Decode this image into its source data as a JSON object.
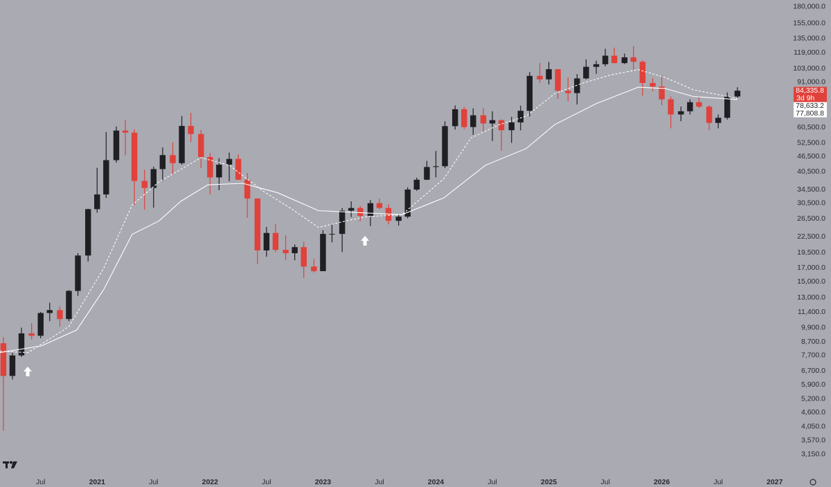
{
  "chart_data": {
    "type": "candlestick",
    "yscale": "log",
    "grid": false,
    "up_color": "#1f1f24",
    "down_color": "#e0413a",
    "xlim": [
      2020.14,
      2027.1
    ],
    "ylim": [
      2640,
      191400
    ],
    "xticks": [
      {
        "value": 2020.5,
        "label": "Jul"
      },
      2021,
      {
        "value": 2021.5,
        "label": "Jul"
      },
      2022,
      {
        "value": 2022.5,
        "label": "Jul"
      },
      2023,
      {
        "value": 2023.5,
        "label": "Jul"
      },
      2024,
      {
        "value": 2024.5,
        "label": "Jul"
      },
      2025,
      {
        "value": 2025.5,
        "label": "Jul"
      },
      2026,
      {
        "value": 2026.5,
        "label": "Jul"
      },
      2027
    ],
    "yticks": [
      {
        "value": 180000,
        "label": "180,000.0"
      },
      {
        "value": 155000,
        "label": "155,000.0"
      },
      {
        "value": 135000,
        "label": "135,000.0"
      },
      {
        "value": 119000,
        "label": "119,000.0"
      },
      {
        "value": 103000,
        "label": "103,000.0"
      },
      {
        "value": 91000,
        "label": "91,000.0"
      },
      {
        "value": 60500,
        "label": "60,500.0"
      },
      {
        "value": 52500,
        "label": "52,500.0"
      },
      {
        "value": 46500,
        "label": "46,500.0"
      },
      {
        "value": 40500,
        "label": "40,500.0"
      },
      {
        "value": 34500,
        "label": "34,500.0"
      },
      {
        "value": 30500,
        "label": "30,500.0"
      },
      {
        "value": 26500,
        "label": "26,500.0"
      },
      {
        "value": 22500,
        "label": "22,500.0"
      },
      {
        "value": 19500,
        "label": "19,500.0"
      },
      {
        "value": 17000,
        "label": "17,000.0"
      },
      {
        "value": 15000,
        "label": "15,000.0"
      },
      {
        "value": 13000,
        "label": "13,000.0"
      },
      {
        "value": 11400,
        "label": "11,400.0"
      },
      {
        "value": 9900,
        "label": "9,900.0"
      },
      {
        "value": 8700,
        "label": "8,700.0"
      },
      {
        "value": 7700,
        "label": "7,700.0"
      },
      {
        "value": 6700,
        "label": "6,700.0"
      },
      {
        "value": 5900,
        "label": "5,900.0"
      },
      {
        "value": 5200,
        "label": "5,200.0"
      },
      {
        "value": 4600,
        "label": "4,600.0"
      },
      {
        "value": 4050,
        "label": "4,050.0"
      },
      {
        "value": 3570,
        "label": "3,570.0"
      },
      {
        "value": 3150,
        "label": "3,150.0"
      }
    ],
    "x": [
      2020.17,
      2020.25,
      2020.33,
      2020.42,
      2020.5,
      2020.58,
      2020.67,
      2020.75,
      2020.83,
      2020.92,
      2021.0,
      2021.08,
      2021.17,
      2021.25,
      2021.33,
      2021.42,
      2021.5,
      2021.58,
      2021.67,
      2021.75,
      2021.83,
      2021.92,
      2022.0,
      2022.08,
      2022.17,
      2022.25,
      2022.33,
      2022.42,
      2022.5,
      2022.58,
      2022.67,
      2022.75,
      2022.83,
      2022.92,
      2023.0,
      2023.08,
      2023.17,
      2023.25,
      2023.33,
      2023.42,
      2023.5,
      2023.58,
      2023.67,
      2023.75,
      2023.83,
      2023.92,
      2024.0,
      2024.08,
      2024.17,
      2024.25,
      2024.33,
      2024.42,
      2024.5,
      2024.58,
      2024.67,
      2024.75,
      2024.83,
      2024.92,
      2025.0,
      2025.08,
      2025.17,
      2025.25,
      2025.33,
      2025.42,
      2025.5,
      2025.58,
      2025.67,
      2025.75,
      2025.83,
      2025.92,
      2026.0,
      2026.08,
      2026.17,
      2026.25,
      2026.33,
      2026.42,
      2026.5,
      2026.58,
      2026.67
    ],
    "open": [
      8600,
      6400,
      7700,
      9400,
      9200,
      11300,
      11600,
      10700,
      13800,
      19000,
      28900,
      33000,
      45000,
      58800,
      57700,
      37300,
      35000,
      41500,
      47100,
      43800,
      61300,
      57000,
      46300,
      38500,
      43200,
      45500,
      37700,
      31800,
      19900,
      23300,
      20000,
      19400,
      20500,
      17200,
      16500,
      23100,
      23100,
      28500,
      29200,
      27200,
      30500,
      29200,
      26000,
      27000,
      34500,
      37700,
      42300,
      42600,
      61200,
      71300,
      60700,
      67500,
      62700,
      64600,
      59000,
      63300,
      70300,
      96400,
      93400,
      102400,
      84300,
      82500,
      94200,
      104600,
      107100,
      115700,
      108200,
      114000,
      109500,
      90400,
      87500,
      78000,
      68000,
      70000,
      76000,
      73000,
      63000,
      66000,
      80000
    ],
    "high": [
      9100,
      7900,
      9900,
      10300,
      11400,
      12400,
      12000,
      13900,
      19400,
      29000,
      42000,
      58000,
      61000,
      64800,
      59500,
      41300,
      42400,
      50500,
      52900,
      67000,
      69000,
      59100,
      48000,
      45800,
      48200,
      47400,
      40000,
      31900,
      24600,
      25200,
      22800,
      21000,
      21500,
      18400,
      23900,
      25200,
      29200,
      31000,
      29800,
      31400,
      31800,
      30200,
      27500,
      35200,
      38400,
      44700,
      48900,
      63900,
      73800,
      72800,
      71900,
      71900,
      70000,
      65000,
      66500,
      73600,
      99800,
      108300,
      109300,
      102500,
      95000,
      97900,
      111900,
      110600,
      123200,
      124400,
      117900,
      126200,
      111000,
      94600,
      97000,
      80000,
      73000,
      78000,
      80000,
      74000,
      68000,
      83000,
      87000
    ],
    "low": [
      3900,
      6200,
      7600,
      8900,
      9000,
      10500,
      10000,
      10500,
      13200,
      18000,
      28000,
      32000,
      44000,
      47000,
      30000,
      28800,
      29300,
      37300,
      39600,
      43200,
      53000,
      42000,
      33000,
      34300,
      37200,
      37600,
      26700,
      17600,
      18800,
      19600,
      18200,
      18200,
      15500,
      16300,
      16500,
      21400,
      19600,
      26900,
      25900,
      24800,
      28900,
      25200,
      24900,
      26600,
      34100,
      37600,
      38500,
      41900,
      59300,
      59600,
      56600,
      58400,
      53500,
      49000,
      52600,
      58900,
      66800,
      90500,
      89200,
      78200,
      76600,
      74400,
      93400,
      98200,
      105100,
      108000,
      107300,
      102000,
      80600,
      84000,
      74000,
      60000,
      64000,
      68000,
      72000,
      59000,
      60000,
      65000,
      79000
    ],
    "close": [
      6400,
      7700,
      9400,
      9200,
      11300,
      11600,
      10700,
      13800,
      19000,
      28900,
      33000,
      45000,
      58800,
      57700,
      37300,
      35000,
      41500,
      47100,
      43800,
      61300,
      57000,
      46300,
      38500,
      43200,
      45500,
      37700,
      31800,
      19900,
      23300,
      20000,
      19400,
      20500,
      17200,
      16500,
      23100,
      23100,
      28500,
      29200,
      27200,
      30500,
      29200,
      26000,
      27000,
      34500,
      37700,
      42300,
      42600,
      61200,
      71300,
      60700,
      67500,
      62700,
      64600,
      59000,
      63300,
      70300,
      96400,
      93400,
      102400,
      84300,
      82500,
      94200,
      104600,
      107100,
      115700,
      108200,
      114000,
      109500,
      90400,
      87500,
      78000,
      68000,
      70000,
      76000,
      73000,
      63000,
      66000,
      80000,
      84335.8
    ],
    "lines": [
      {
        "style": "dashed",
        "color": "#ffffff",
        "x": [
          2020.14,
          2020.39,
          2020.75,
          2021.06,
          2021.31,
          2021.55,
          2021.92,
          2022.17,
          2022.47,
          2022.72,
          2022.96,
          2023.21,
          2023.39,
          2023.7,
          2024.07,
          2024.31,
          2024.56,
          2024.8,
          2025.05,
          2025.29,
          2025.54,
          2025.79,
          2026.03,
          2026.28,
          2026.67
        ],
        "values": [
          8000,
          7900,
          10000,
          17000,
          30000,
          37000,
          46000,
          43000,
          34000,
          29000,
          24500,
          26000,
          27000,
          27500,
          38000,
          55000,
          62000,
          67000,
          82000,
          90000,
          97000,
          102000,
          95000,
          85000,
          78633.2
        ]
      },
      {
        "style": "solid",
        "color": "#ffffff",
        "x": [
          2020.14,
          2020.51,
          2020.82,
          2021.06,
          2021.31,
          2021.55,
          2021.74,
          2021.98,
          2022.29,
          2022.6,
          2022.96,
          2023.33,
          2023.7,
          2024.07,
          2024.44,
          2024.8,
          2025.05,
          2025.42,
          2025.79,
          2026.03,
          2026.28,
          2026.67
        ],
        "values": [
          7900,
          8400,
          9700,
          14000,
          23000,
          26000,
          31000,
          36000,
          36500,
          33500,
          28500,
          28000,
          27500,
          32000,
          43000,
          50000,
          62000,
          75000,
          87000,
          86000,
          80000,
          77808.8
        ]
      }
    ],
    "price_tags": [
      {
        "value": 84335.8,
        "label": "84,335.8",
        "sublabel": "3d 9h",
        "color": "#e0413a",
        "text_color": "#ffffff"
      },
      {
        "value": 78633.2,
        "label": "78,633.2",
        "color": "#ffffff",
        "text_color": "#1f1f24"
      },
      {
        "value": 77808.8,
        "label": "77,808.8",
        "color": "#ffffff",
        "text_color": "#1f1f24"
      }
    ]
  }
}
